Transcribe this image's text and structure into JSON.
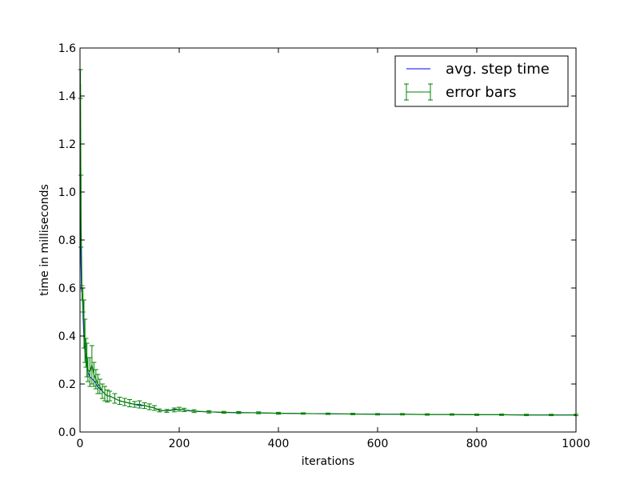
{
  "chart_data": {
    "type": "line",
    "title": "",
    "xlabel": "iterations",
    "ylabel": "time in milliseconds",
    "xlim": [
      0,
      1000
    ],
    "ylim": [
      0.0,
      1.6
    ],
    "x_ticks": [
      "0",
      "200",
      "400",
      "600",
      "800",
      "1000"
    ],
    "y_ticks": [
      "0.0",
      "0.2",
      "0.4",
      "0.6",
      "0.8",
      "1.0",
      "1.2",
      "1.4",
      "1.6"
    ],
    "x_tick_values": [
      0,
      200,
      400,
      600,
      800,
      1000
    ],
    "y_tick_values": [
      0.0,
      0.2,
      0.4,
      0.6,
      0.8,
      1.0,
      1.2,
      1.4,
      1.6
    ],
    "grid": false,
    "legend": {
      "placement": "top-right"
    },
    "series": [
      {
        "name": "avg. step time",
        "kind": "line",
        "color": "#0000ff",
        "x": [
          0,
          1,
          2,
          3,
          4,
          5,
          6,
          7,
          8,
          10,
          12,
          14,
          16,
          18,
          20,
          25,
          30,
          35,
          40,
          45,
          50,
          55,
          60,
          70,
          80,
          90,
          100,
          110,
          120,
          130,
          140,
          150,
          160,
          170,
          180,
          190,
          200,
          220,
          240,
          260,
          280,
          300,
          350,
          400,
          450,
          500,
          550,
          600,
          650,
          700,
          750,
          800,
          850,
          900,
          950,
          1000
        ],
        "y": [
          1.45,
          0.92,
          0.7,
          0.59,
          0.58,
          0.55,
          0.5,
          0.44,
          0.38,
          0.33,
          0.3,
          0.27,
          0.25,
          0.24,
          0.23,
          0.22,
          0.21,
          0.19,
          0.18,
          0.17,
          0.16,
          0.15,
          0.15,
          0.14,
          0.13,
          0.125,
          0.12,
          0.115,
          0.11,
          0.11,
          0.105,
          0.1,
          0.09,
          0.088,
          0.09,
          0.095,
          0.095,
          0.088,
          0.085,
          0.084,
          0.082,
          0.081,
          0.08,
          0.078,
          0.077,
          0.076,
          0.075,
          0.074,
          0.074,
          0.073,
          0.073,
          0.072,
          0.072,
          0.071,
          0.071,
          0.071
        ]
      },
      {
        "name": "error bars",
        "kind": "errorbar",
        "color": "#008000",
        "x": [
          1,
          2,
          4,
          6,
          8,
          10,
          12,
          14,
          16,
          20,
          24,
          28,
          32,
          36,
          40,
          45,
          50,
          55,
          60,
          70,
          80,
          90,
          100,
          110,
          120,
          130,
          140,
          150,
          160,
          175,
          190,
          200,
          210,
          230,
          260,
          290,
          320,
          360,
          400,
          450,
          500,
          550,
          600,
          650,
          700,
          750,
          800,
          850,
          900,
          950,
          1000
        ],
        "y": [
          1.45,
          0.92,
          0.58,
          0.55,
          0.45,
          0.38,
          0.33,
          0.3,
          0.26,
          0.25,
          0.28,
          0.24,
          0.22,
          0.2,
          0.19,
          0.17,
          0.16,
          0.15,
          0.15,
          0.14,
          0.13,
          0.125,
          0.12,
          0.115,
          0.115,
          0.11,
          0.105,
          0.1,
          0.09,
          0.088,
          0.092,
          0.095,
          0.092,
          0.087,
          0.084,
          0.082,
          0.081,
          0.08,
          0.078,
          0.077,
          0.076,
          0.075,
          0.074,
          0.074,
          0.073,
          0.073,
          0.072,
          0.072,
          0.071,
          0.071,
          0.071
        ],
        "err": [
          0.06,
          0.15,
          0.03,
          0.05,
          0.1,
          0.09,
          0.06,
          0.07,
          0.05,
          0.06,
          0.08,
          0.05,
          0.04,
          0.04,
          0.03,
          0.03,
          0.03,
          0.025,
          0.02,
          0.02,
          0.015,
          0.015,
          0.015,
          0.012,
          0.015,
          0.012,
          0.012,
          0.01,
          0.006,
          0.006,
          0.008,
          0.008,
          0.007,
          0.006,
          0.005,
          0.004,
          0.004,
          0.004,
          0.004,
          0.003,
          0.003,
          0.003,
          0.003,
          0.003,
          0.003,
          0.003,
          0.003,
          0.003,
          0.003,
          0.003,
          0.003
        ]
      }
    ]
  }
}
